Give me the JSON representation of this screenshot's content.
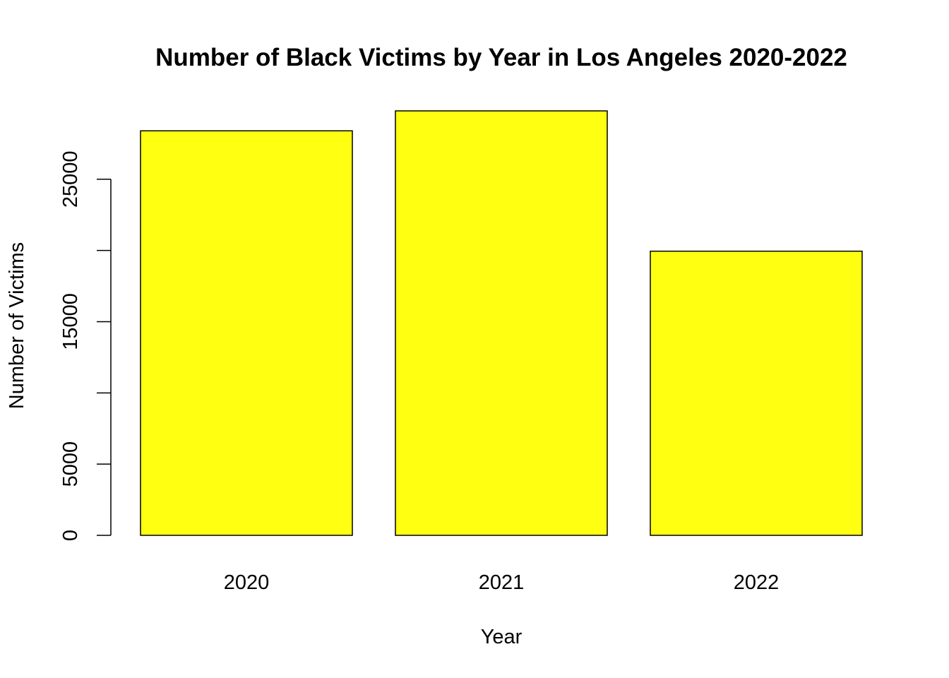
{
  "chart_data": {
    "type": "bar",
    "title": "Number of Black Victims by Year in Los Angeles 2020-2022",
    "xlabel": "Year",
    "ylabel": "Number of Victims",
    "categories": [
      "2020",
      "2021",
      "2022"
    ],
    "values": [
      28400,
      29800,
      19950
    ],
    "ylim": [
      0,
      29800
    ],
    "yticks": [
      0,
      5000,
      10000,
      15000,
      20000,
      25000
    ],
    "ytick_labels": [
      "0",
      "5000",
      "",
      "15000",
      "",
      "25000"
    ],
    "bar_color": "#FFFF11",
    "bar_border_color": "#000000",
    "grid": false,
    "legend": "none"
  }
}
